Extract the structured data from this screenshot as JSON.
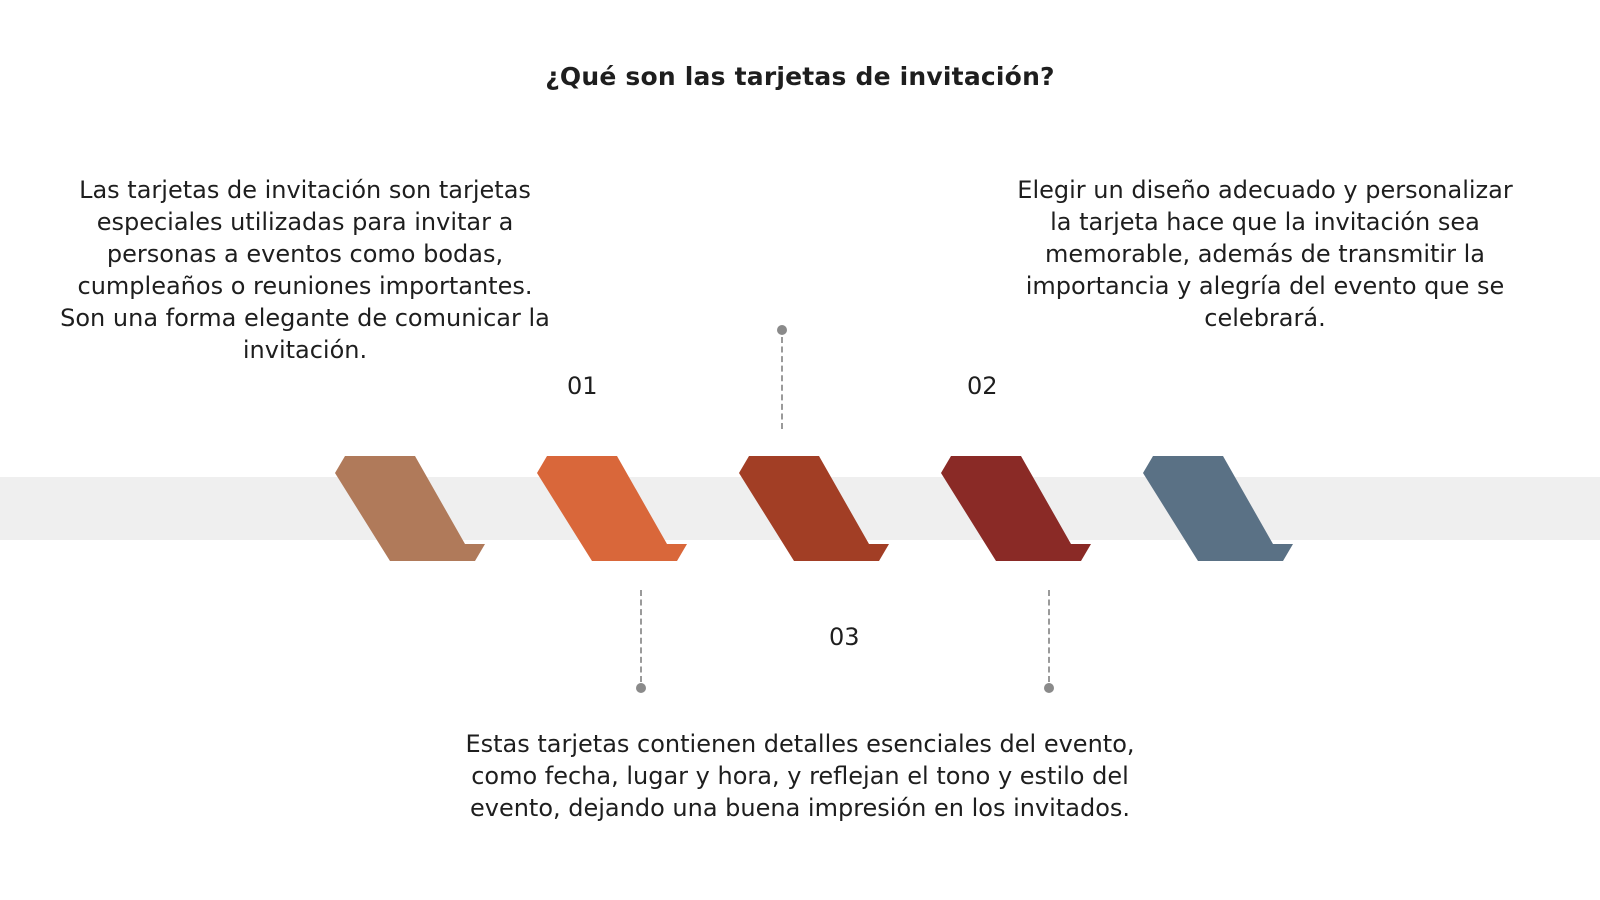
{
  "title": "¿Qué son las tarjetas de invitación?",
  "blocks": [
    {
      "text": "Las tarjetas de invitación son tarjetas especiales utilizadas para invitar a personas a eventos como bodas, cumpleaños o reuniones importantes. Son una forma elegante de comunicar la invitación."
    },
    {
      "text": "Elegir un diseño adecuado y personalizar la tarjeta hace que la invitación sea memorable, además de transmitir la importancia y alegría del evento que se celebrará."
    },
    {
      "text": "Estas tarjetas contienen detalles esenciales del evento, como fecha, lugar y hora, y reflejan el tono y estilo del evento, dejando una buena impresión en los invitados."
    }
  ],
  "steps": [
    "01",
    "02",
    "03"
  ],
  "colors": {
    "band": "#efefef",
    "ribbons": [
      "#b07a5a",
      "#d9673a",
      "#a23e25",
      "#8a2a26",
      "#5a7185"
    ],
    "connector": "#8a8a8a"
  }
}
